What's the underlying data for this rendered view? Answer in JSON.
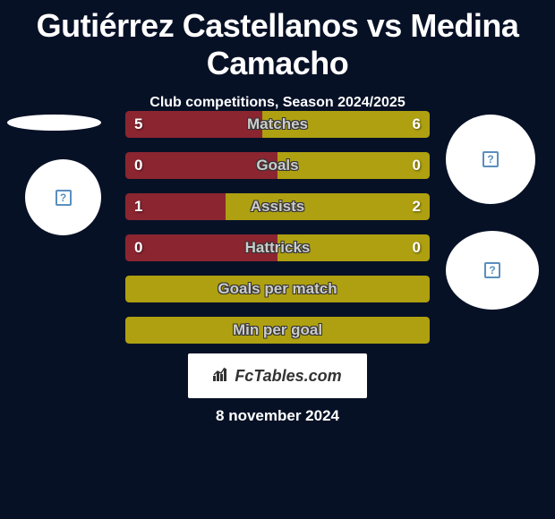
{
  "title": "Gutiérrez Castellanos vs Medina Camacho",
  "subtitle": "Club competitions, Season 2024/2025",
  "footer_date": "8 november 2024",
  "footer_logo_text": "FcTables.com",
  "colors": {
    "background": "#071126",
    "player1": "#8b2530",
    "player2": "#aea010",
    "text": "#ffffff",
    "label": "#cccccc"
  },
  "stats": [
    {
      "label": "Matches",
      "left_value": "5",
      "right_value": "6",
      "left_pct": 45,
      "right_pct": 55,
      "left_color": "#8b2530",
      "right_color": "#aea010",
      "show_values": true
    },
    {
      "label": "Goals",
      "left_value": "0",
      "right_value": "0",
      "left_pct": 50,
      "right_pct": 50,
      "left_color": "#8b2530",
      "right_color": "#aea010",
      "show_values": true
    },
    {
      "label": "Assists",
      "left_value": "1",
      "right_value": "2",
      "left_pct": 33,
      "right_pct": 67,
      "left_color": "#8b2530",
      "right_color": "#aea010",
      "show_values": true
    },
    {
      "label": "Hattricks",
      "left_value": "0",
      "right_value": "0",
      "left_pct": 50,
      "right_pct": 50,
      "left_color": "#8b2530",
      "right_color": "#aea010",
      "show_values": true
    },
    {
      "label": "Goals per match",
      "left_value": "",
      "right_value": "",
      "left_pct": 0,
      "right_pct": 0,
      "full_color": "#aea010",
      "show_values": false,
      "full_bar": true
    },
    {
      "label": "Min per goal",
      "left_value": "",
      "right_value": "",
      "left_pct": 0,
      "right_pct": 0,
      "full_color": "#aea010",
      "show_values": false,
      "full_bar": true
    }
  ]
}
